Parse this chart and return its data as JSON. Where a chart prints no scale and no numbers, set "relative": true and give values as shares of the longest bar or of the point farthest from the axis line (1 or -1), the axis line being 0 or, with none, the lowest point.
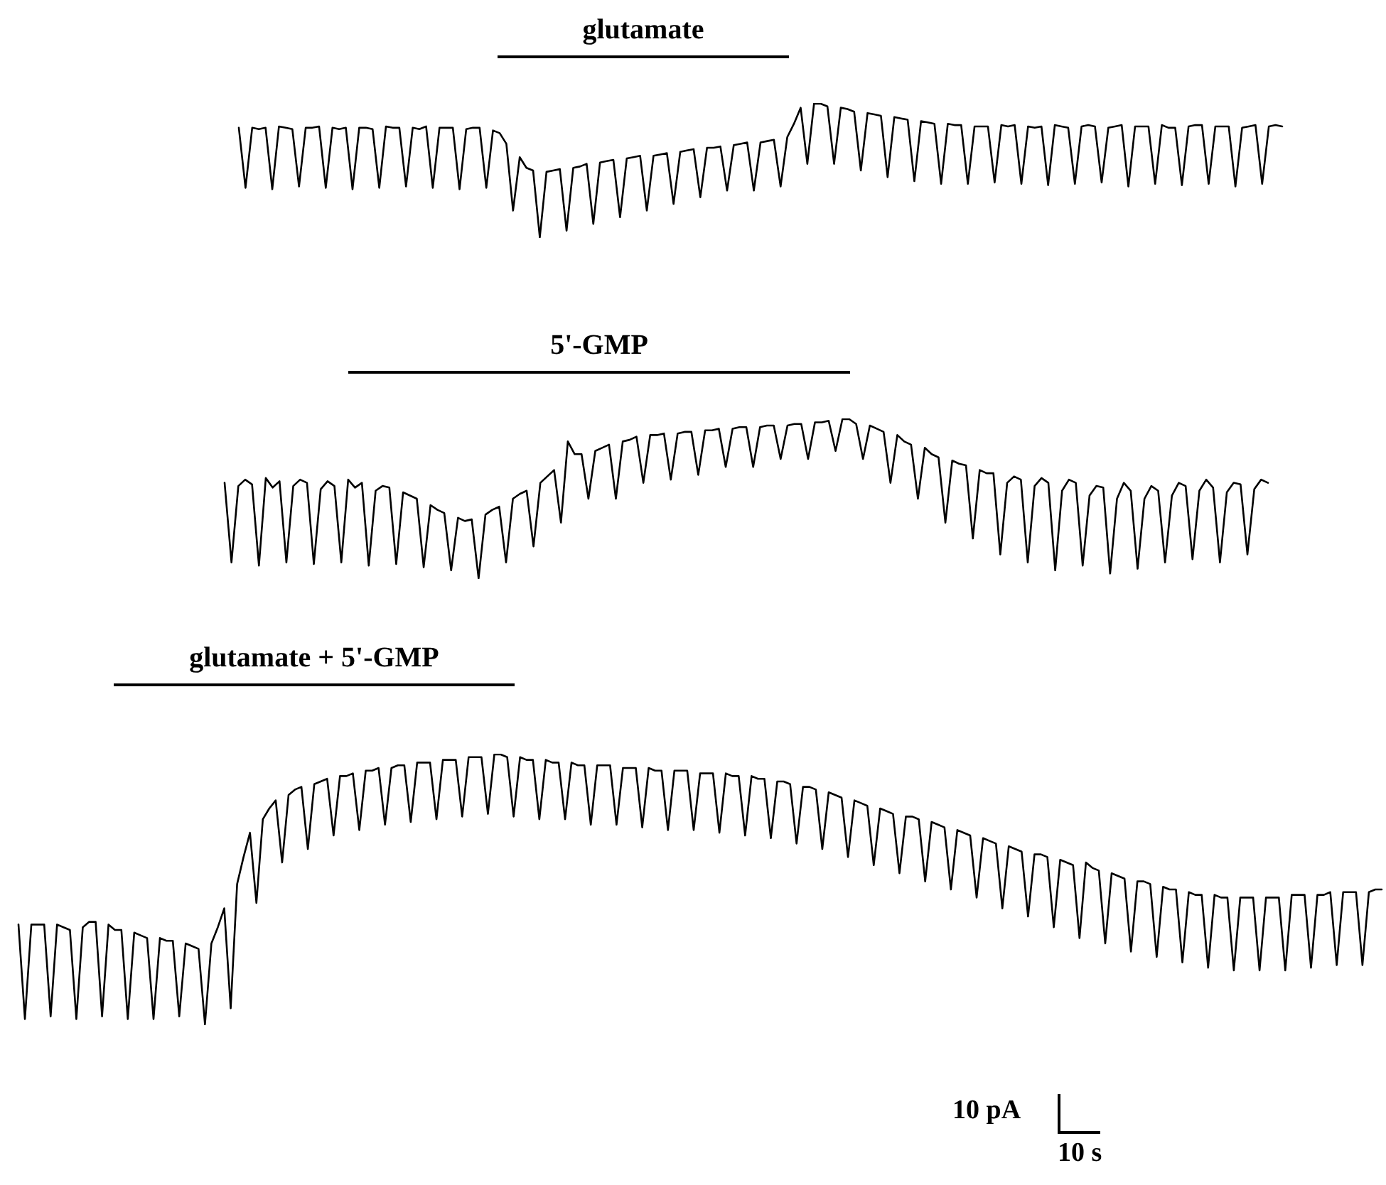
{
  "chart_data": [
    {
      "type": "line",
      "title": "glutamate",
      "relative": true,
      "color": "#000000",
      "categories": [
        null,
        null,
        null,
        null,
        null,
        null,
        null,
        null,
        null,
        null,
        null,
        null,
        null,
        null,
        null,
        null,
        null,
        null,
        null,
        null,
        null,
        null,
        null,
        null,
        null,
        null,
        null,
        null,
        null,
        null,
        null,
        null,
        null,
        null,
        null,
        null,
        null,
        null,
        null,
        null,
        null,
        null,
        null,
        null,
        null,
        null,
        null,
        null,
        null,
        null,
        null,
        null,
        null,
        null,
        null,
        null,
        null,
        null,
        null,
        null,
        null,
        null,
        null,
        null,
        null,
        null,
        null,
        null,
        null,
        null,
        null,
        null,
        null,
        null,
        null,
        null,
        null,
        null,
        null,
        null,
        null,
        null,
        null,
        null,
        null,
        null,
        null,
        null,
        null,
        null,
        null,
        null,
        null,
        null,
        null,
        null,
        null,
        null,
        null,
        null,
        null,
        null,
        null,
        null,
        null,
        null,
        null,
        null,
        null,
        null,
        null,
        null,
        null,
        null,
        null,
        null,
        null,
        null,
        null,
        null,
        null,
        null,
        null,
        null,
        null,
        null,
        null,
        null,
        null,
        null,
        null,
        null,
        null,
        null,
        null,
        null,
        null,
        null,
        null,
        null,
        null,
        null,
        null,
        null,
        null,
        null,
        null,
        null,
        null,
        null,
        null,
        null,
        null,
        null,
        null,
        null,
        null
      ],
      "values": [
        0.82,
        0.37,
        0.82,
        0.81,
        0.82,
        0.36,
        0.83,
        0.82,
        0.81,
        0.38,
        0.82,
        0.82,
        0.83,
        0.37,
        0.82,
        0.81,
        0.82,
        0.36,
        0.82,
        0.82,
        0.81,
        0.37,
        0.83,
        0.82,
        0.82,
        0.38,
        0.82,
        0.81,
        0.83,
        0.37,
        0.82,
        0.82,
        0.82,
        0.36,
        0.81,
        0.82,
        0.82,
        0.37,
        0.8,
        0.78,
        0.7,
        0.2,
        0.6,
        0.52,
        0.5,
        0,
        0.49,
        0.5,
        0.51,
        0.05,
        0.52,
        0.53,
        0.55,
        0.1,
        0.56,
        0.57,
        0.58,
        0.15,
        0.59,
        0.6,
        0.61,
        0.2,
        0.61,
        0.62,
        0.63,
        0.25,
        0.64,
        0.65,
        0.66,
        0.3,
        0.67,
        0.67,
        0.68,
        0.35,
        0.69,
        0.7,
        0.71,
        0.35,
        0.71,
        0.72,
        0.73,
        0.38,
        0.75,
        0.85,
        0.97,
        0.55,
        1,
        1,
        0.98,
        0.55,
        0.97,
        0.96,
        0.94,
        0.5,
        0.93,
        0.92,
        0.91,
        0.45,
        0.9,
        0.89,
        0.88,
        0.42,
        0.87,
        0.86,
        0.85,
        0.4,
        0.85,
        0.84,
        0.84,
        0.4,
        0.83,
        0.83,
        0.83,
        0.41,
        0.84,
        0.83,
        0.84,
        0.4,
        0.83,
        0.82,
        0.83,
        0.39,
        0.84,
        0.83,
        0.82,
        0.4,
        0.83,
        0.84,
        0.83,
        0.41,
        0.82,
        0.83,
        0.84,
        0.38,
        0.83,
        0.83,
        0.83,
        0.4,
        0.84,
        0.82,
        0.82,
        0.39,
        0.83,
        0.84,
        0.84,
        0.4,
        0.83,
        0.83,
        0.83,
        0.38,
        0.82,
        0.83,
        0.84,
        0.4,
        0.83,
        0.84,
        0.83
      ]
    },
    {
      "type": "line",
      "title": "5'-GMP",
      "relative": true,
      "color": "#000000",
      "categories": [
        null,
        null,
        null,
        null,
        null,
        null,
        null,
        null,
        null,
        null,
        null,
        null,
        null,
        null,
        null,
        null,
        null,
        null,
        null,
        null,
        null,
        null,
        null,
        null,
        null,
        null,
        null,
        null,
        null,
        null,
        null,
        null,
        null,
        null,
        null,
        null,
        null,
        null,
        null,
        null,
        null,
        null,
        null,
        null,
        null,
        null,
        null,
        null,
        null,
        null,
        null,
        null,
        null,
        null,
        null,
        null,
        null,
        null,
        null,
        null,
        null,
        null,
        null,
        null,
        null,
        null,
        null,
        null,
        null,
        null,
        null,
        null,
        null,
        null,
        null,
        null,
        null,
        null,
        null,
        null,
        null,
        null,
        null,
        null,
        null,
        null,
        null,
        null,
        null,
        null,
        null,
        null,
        null,
        null,
        null,
        null,
        null,
        null,
        null,
        null,
        null,
        null,
        null,
        null,
        null,
        null,
        null,
        null,
        null,
        null,
        null,
        null,
        null,
        null,
        null,
        null,
        null,
        null,
        null,
        null,
        null,
        null,
        null,
        null,
        null,
        null,
        null,
        null,
        null,
        null,
        null,
        null,
        null,
        null,
        null,
        null,
        null,
        null,
        null,
        null,
        null,
        null,
        null,
        null,
        null,
        null,
        null,
        null,
        null,
        null,
        null,
        null,
        null
      ],
      "values": [
        0.6,
        0.1,
        0.58,
        0.62,
        0.59,
        0.08,
        0.63,
        0.57,
        0.61,
        0.1,
        0.58,
        0.62,
        0.6,
        0.09,
        0.56,
        0.61,
        0.58,
        0.1,
        0.62,
        0.57,
        0.6,
        0.08,
        0.55,
        0.58,
        0.57,
        0.09,
        0.54,
        0.52,
        0.5,
        0.07,
        0.46,
        0.43,
        0.41,
        0.05,
        0.38,
        0.36,
        0.37,
        0,
        0.4,
        0.43,
        0.45,
        0.1,
        0.5,
        0.53,
        0.55,
        0.2,
        0.6,
        0.64,
        0.68,
        0.35,
        0.86,
        0.78,
        0.78,
        0.5,
        0.8,
        0.82,
        0.84,
        0.5,
        0.86,
        0.87,
        0.89,
        0.6,
        0.9,
        0.9,
        0.91,
        0.62,
        0.91,
        0.92,
        0.92,
        0.65,
        0.93,
        0.93,
        0.94,
        0.7,
        0.94,
        0.95,
        0.95,
        0.7,
        0.95,
        0.96,
        0.96,
        0.75,
        0.96,
        0.97,
        0.97,
        0.75,
        0.98,
        0.98,
        0.99,
        0.8,
        1,
        1,
        0.97,
        0.75,
        0.96,
        0.94,
        0.92,
        0.6,
        0.9,
        0.86,
        0.84,
        0.5,
        0.82,
        0.78,
        0.76,
        0.35,
        0.74,
        0.72,
        0.71,
        0.25,
        0.68,
        0.66,
        0.66,
        0.15,
        0.6,
        0.64,
        0.62,
        0.1,
        0.58,
        0.63,
        0.6,
        0.05,
        0.55,
        0.62,
        0.6,
        0.08,
        0.52,
        0.58,
        0.57,
        0.03,
        0.5,
        0.6,
        0.55,
        0.06,
        0.5,
        0.58,
        0.55,
        0.1,
        0.52,
        0.6,
        0.58,
        0.12,
        0.55,
        0.62,
        0.57,
        0.1,
        0.54,
        0.6,
        0.59,
        0.15,
        0.56,
        0.62,
        0.6
      ]
    },
    {
      "type": "line",
      "title": "glutamate + 5'-GMP",
      "relative": true,
      "color": "#000000",
      "annotations": [
        "10 pA",
        "10 s"
      ],
      "categories": [
        null,
        null,
        null,
        null,
        null,
        null,
        null,
        null,
        null,
        null,
        null,
        null,
        null,
        null,
        null,
        null,
        null,
        null,
        null,
        null,
        null,
        null,
        null,
        null,
        null,
        null,
        null,
        null,
        null,
        null,
        null,
        null,
        null,
        null,
        null,
        null,
        null,
        null,
        null,
        null,
        null,
        null,
        null,
        null,
        null,
        null,
        null,
        null,
        null,
        null,
        null,
        null,
        null,
        null,
        null,
        null,
        null,
        null,
        null,
        null,
        null,
        null,
        null,
        null,
        null,
        null,
        null,
        null,
        null,
        null,
        null,
        null,
        null,
        null,
        null,
        null,
        null,
        null,
        null,
        null,
        null,
        null,
        null,
        null,
        null,
        null,
        null,
        null,
        null,
        null,
        null,
        null,
        null,
        null,
        null,
        null,
        null,
        null,
        null,
        null,
        null,
        null,
        null,
        null,
        null,
        null,
        null,
        null,
        null,
        null,
        null,
        null,
        null,
        null,
        null,
        null,
        null,
        null,
        null,
        null,
        null,
        null,
        null,
        null,
        null,
        null,
        null,
        null,
        null,
        null,
        null,
        null,
        null,
        null,
        null,
        null,
        null,
        null,
        null,
        null,
        null,
        null,
        null,
        null,
        null,
        null,
        null,
        null,
        null,
        null,
        null,
        null,
        null,
        null,
        null,
        null,
        null,
        null,
        null,
        null,
        null,
        null,
        null,
        null,
        null,
        null,
        null,
        null,
        null,
        null,
        null,
        null,
        null,
        null,
        null,
        null,
        null,
        null,
        null,
        null,
        null,
        null,
        null,
        null,
        null,
        null,
        null,
        null,
        null,
        null,
        null,
        null,
        null,
        null,
        null,
        null,
        null,
        null,
        null,
        null,
        null,
        null,
        null,
        null,
        null,
        null,
        null,
        null,
        null,
        null,
        null,
        null,
        null
      ],
      "values": [
        0.37,
        0.02,
        0.37,
        0.37,
        0.37,
        0.03,
        0.37,
        0.36,
        0.35,
        0.02,
        0.36,
        0.38,
        0.38,
        0.03,
        0.37,
        0.35,
        0.35,
        0.02,
        0.34,
        0.33,
        0.32,
        0.02,
        0.32,
        0.31,
        0.31,
        0.03,
        0.3,
        0.29,
        0.28,
        0,
        0.3,
        0.36,
        0.43,
        0.06,
        0.52,
        0.62,
        0.71,
        0.45,
        0.76,
        0.8,
        0.83,
        0.6,
        0.85,
        0.87,
        0.88,
        0.65,
        0.89,
        0.9,
        0.91,
        0.7,
        0.92,
        0.92,
        0.93,
        0.72,
        0.94,
        0.94,
        0.95,
        0.74,
        0.95,
        0.96,
        0.96,
        0.75,
        0.97,
        0.97,
        0.97,
        0.76,
        0.98,
        0.98,
        0.98,
        0.77,
        0.99,
        0.99,
        0.99,
        0.78,
        1,
        1,
        0.99,
        0.77,
        0.99,
        0.98,
        0.98,
        0.76,
        0.98,
        0.97,
        0.97,
        0.76,
        0.97,
        0.96,
        0.96,
        0.74,
        0.96,
        0.96,
        0.96,
        0.74,
        0.95,
        0.95,
        0.95,
        0.73,
        0.95,
        0.94,
        0.94,
        0.72,
        0.94,
        0.94,
        0.94,
        0.72,
        0.93,
        0.93,
        0.93,
        0.71,
        0.93,
        0.92,
        0.92,
        0.7,
        0.92,
        0.91,
        0.91,
        0.69,
        0.9,
        0.9,
        0.89,
        0.67,
        0.88,
        0.88,
        0.87,
        0.65,
        0.86,
        0.85,
        0.84,
        0.62,
        0.83,
        0.82,
        0.81,
        0.59,
        0.8,
        0.79,
        0.78,
        0.56,
        0.77,
        0.77,
        0.76,
        0.53,
        0.75,
        0.74,
        0.73,
        0.5,
        0.72,
        0.71,
        0.7,
        0.47,
        0.69,
        0.68,
        0.67,
        0.43,
        0.66,
        0.65,
        0.64,
        0.4,
        0.63,
        0.63,
        0.62,
        0.36,
        0.61,
        0.6,
        0.59,
        0.32,
        0.6,
        0.58,
        0.57,
        0.3,
        0.56,
        0.55,
        0.54,
        0.27,
        0.53,
        0.53,
        0.52,
        0.25,
        0.51,
        0.5,
        0.5,
        0.23,
        0.49,
        0.48,
        0.48,
        0.21,
        0.48,
        0.47,
        0.47,
        0.2,
        0.47,
        0.47,
        0.47,
        0.2,
        0.47,
        0.47,
        0.47,
        0.2,
        0.48,
        0.48,
        0.48,
        0.21,
        0.48,
        0.48,
        0.49,
        0.22,
        0.49,
        0.49,
        0.49,
        0.22,
        0.49,
        0.5,
        0.5
      ]
    }
  ]
}
